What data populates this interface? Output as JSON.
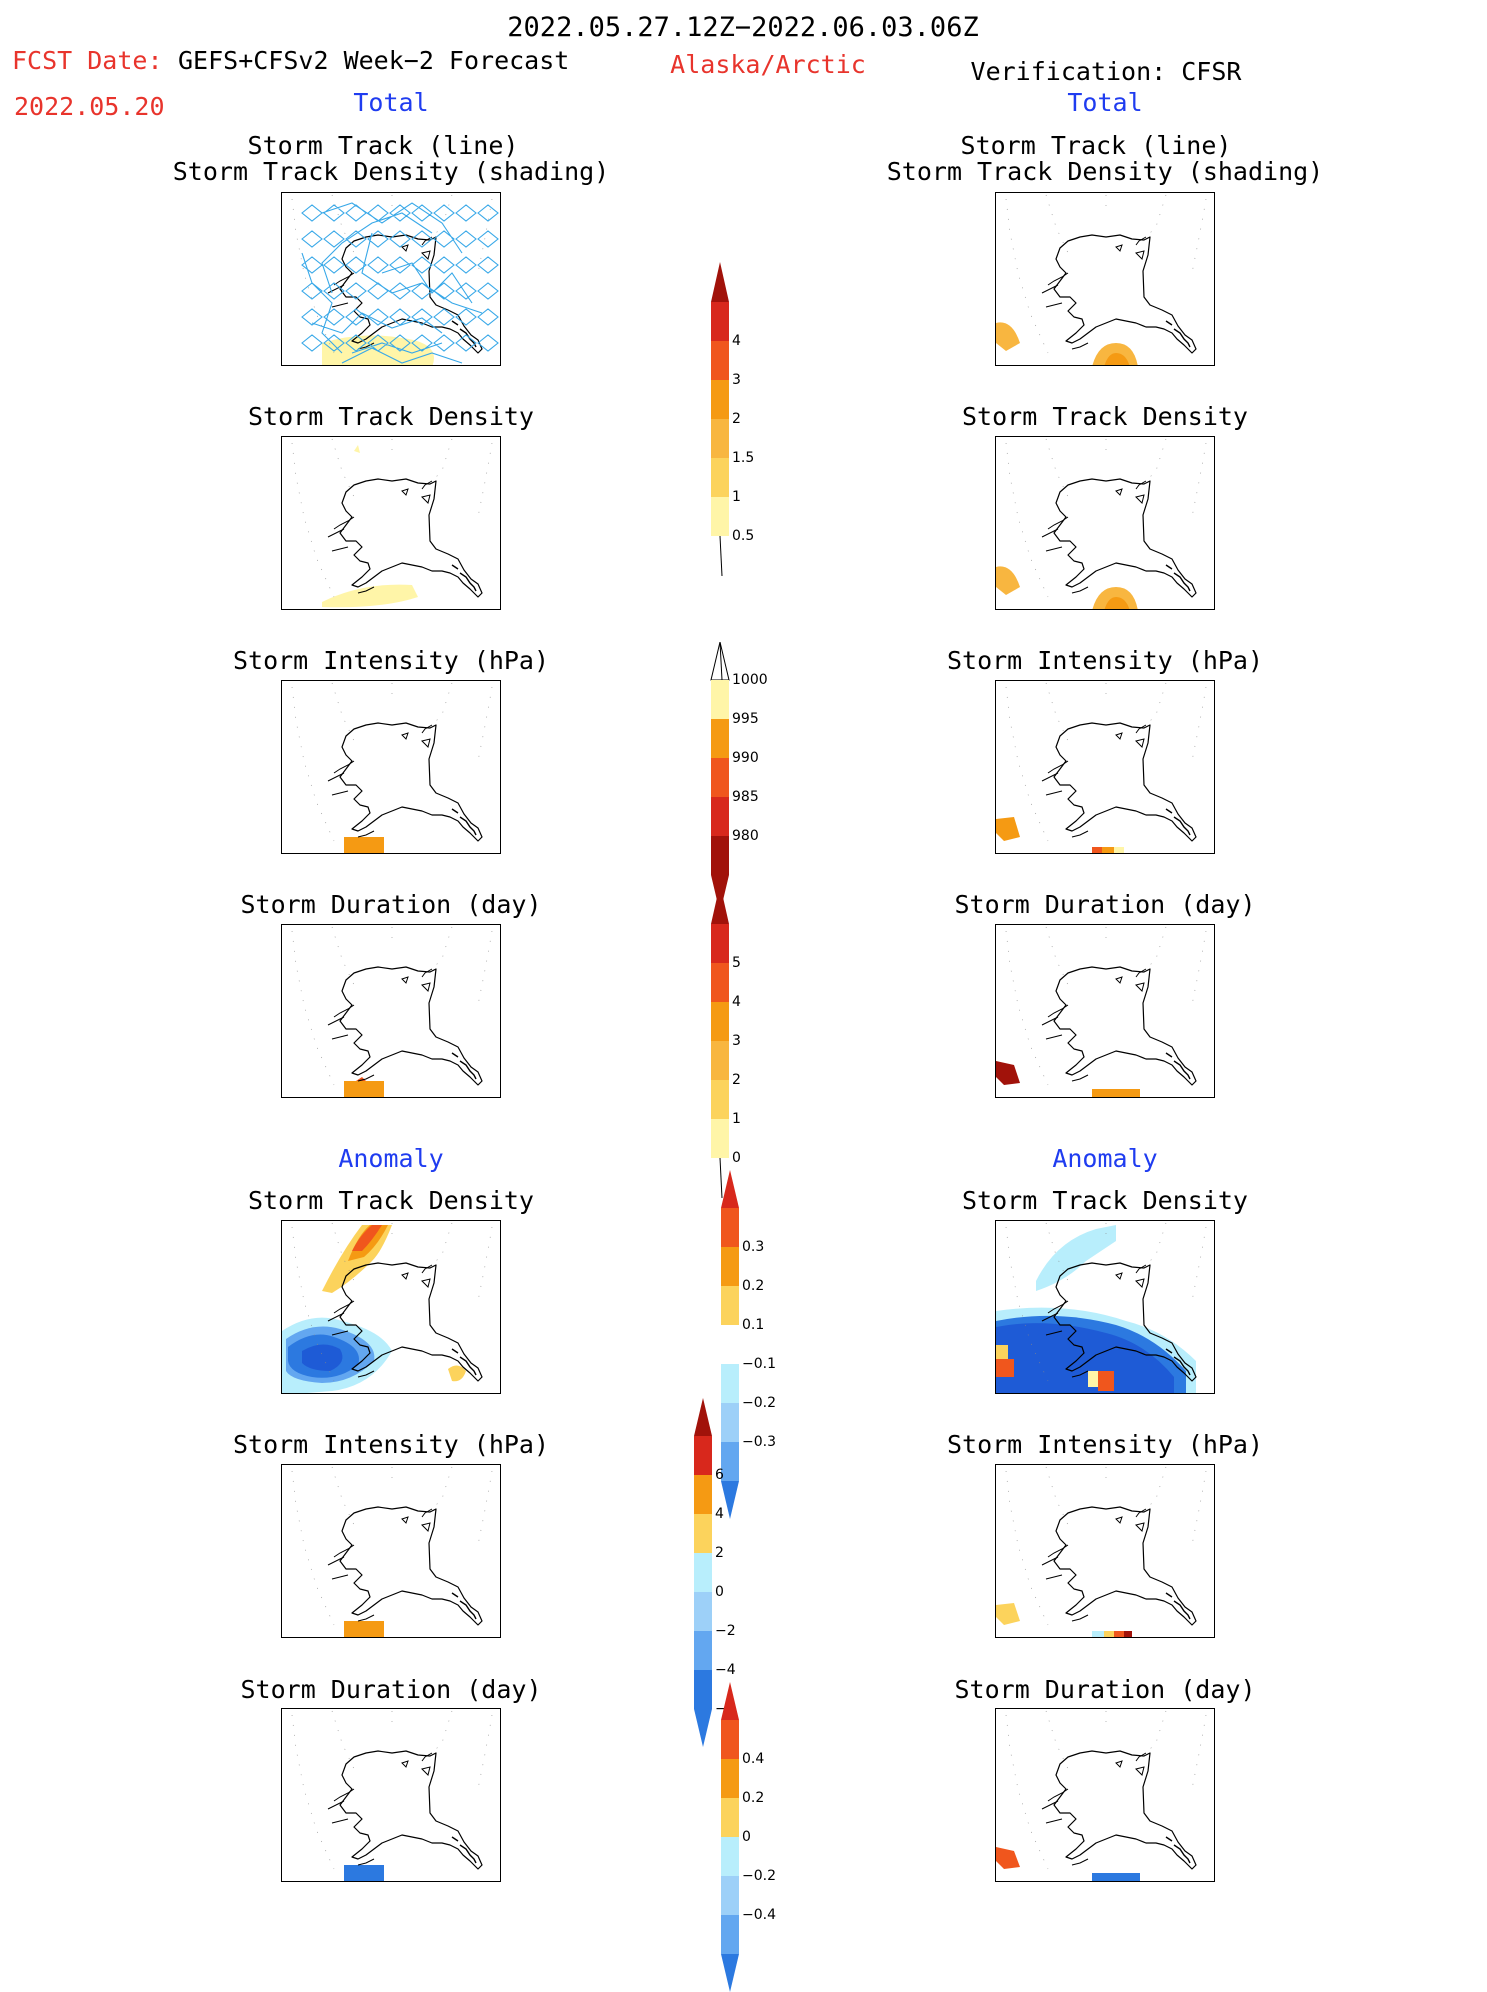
{
  "header": {
    "period": "2022.05.27.12Z−2022.06.03.06Z",
    "region": "Alaska/Arctic",
    "fcst_label": "FCST Date:",
    "fcst_model": "GEFS+CFSv2 Week−2 Forecast",
    "fcst_date": "2022.05.20",
    "verification": "Verification: CFSR"
  },
  "columns": {
    "left_total": "Total",
    "right_total": "Total",
    "left_anomaly": "Anomaly",
    "right_anomaly": "Anomaly"
  },
  "panel_titles": {
    "track_line": "Storm Track (line)",
    "track_shading": "Storm Track Density (shading)",
    "density": "Storm Track Density",
    "intensity": "Storm Intensity (hPa)",
    "duration": "Storm Duration (day)"
  },
  "colorbars": {
    "density_total": [
      "4",
      "3",
      "2",
      "1.5",
      "1",
      "0.5"
    ],
    "intensity_total": [
      "1000",
      "995",
      "990",
      "985",
      "980"
    ],
    "duration_total": [
      "5",
      "4",
      "3",
      "2",
      "1",
      "0"
    ],
    "density_anom": [
      "0.3",
      "0.2",
      "0.1",
      "−0.1",
      "−0.2",
      "−0.3"
    ],
    "intensity_anom": [
      "6",
      "4",
      "2",
      "0",
      "−2",
      "−4",
      "−6"
    ],
    "duration_anom": [
      "0.4",
      "0.2",
      "0",
      "−0.2",
      "−0.4"
    ]
  },
  "colors": {
    "title_red": "#e8342c",
    "title_blue": "#1f3cf0",
    "track_line": "#38a8e8",
    "yellow_light": "#fff5a8",
    "yellow": "#fcd35c",
    "orange_light": "#f8b640",
    "orange": "#f59a13",
    "red_orange": "#f0561d",
    "red": "#d8281c",
    "dark_red": "#a1120a",
    "blue_light": "#b8eefc",
    "blue_mid": "#9dd0f8",
    "blue": "#63a7f0",
    "blue_strong": "#2c79e0",
    "blue_dark": "#1e5bd6"
  }
}
